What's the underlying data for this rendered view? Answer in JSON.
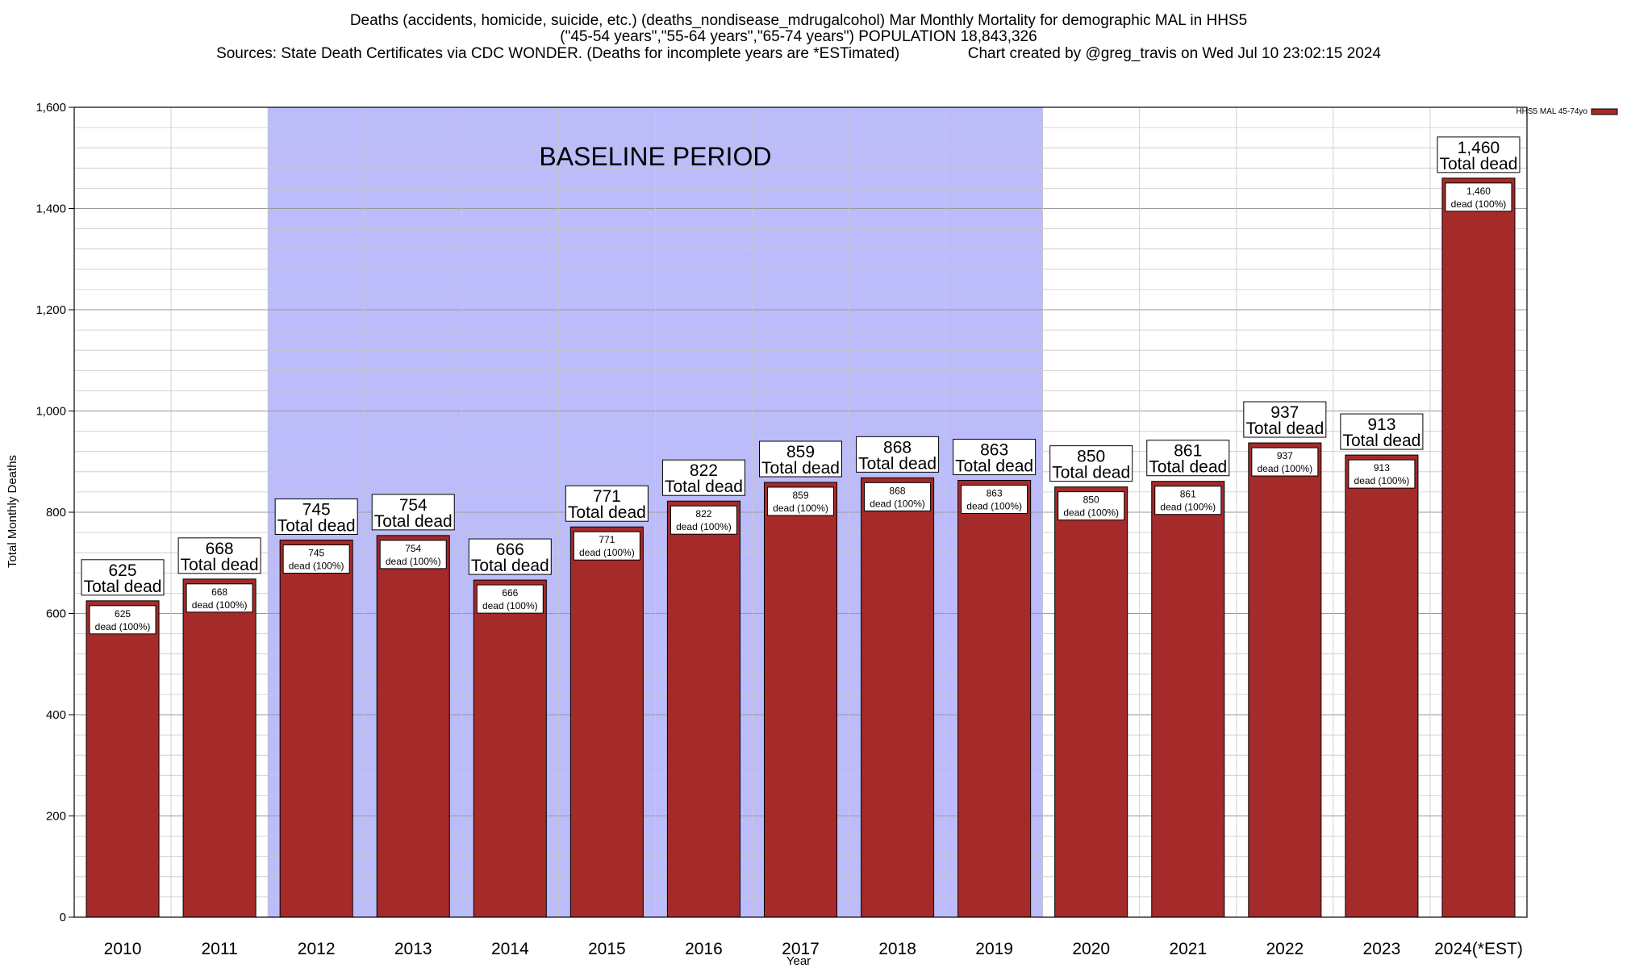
{
  "chart_data": {
    "type": "bar",
    "title_lines": [
      "Deaths (accidents, homicide, suicide, etc.) (deaths_nondisease_mdrugalcohol) Mar Monthly Mortality for demographic MAL in HHS5",
      "(\"45-54 years\",\"55-64 years\",\"65-74 years\") POPULATION 18,843,326",
      "Sources: State Death Certificates via CDC WONDER. (Deaths for incomplete years are *ESTimated)                Chart created by @greg_travis on Wed Jul 10 23:02:15 2024"
    ],
    "xlabel": "Year",
    "ylabel": "Total Monthly Deaths",
    "ylim": [
      0,
      1600
    ],
    "yticks": [
      0,
      200,
      400,
      600,
      800,
      1000,
      1200,
      1400,
      1600
    ],
    "ytick_labels": [
      "0",
      "200",
      "400",
      "600",
      "800",
      "1,000",
      "1,200",
      "1,400",
      "1,600"
    ],
    "grid": true,
    "categories": [
      "2010",
      "2011",
      "2012",
      "2013",
      "2014",
      "2015",
      "2016",
      "2017",
      "2018",
      "2019",
      "2020",
      "2021",
      "2022",
      "2023",
      "2024(*EST)"
    ],
    "series": [
      {
        "name": "HHS5 MAL 45-74yo",
        "color": "#a52a2a",
        "values": [
          625,
          668,
          745,
          754,
          666,
          771,
          822,
          859,
          868,
          863,
          850,
          861,
          937,
          913,
          1460
        ]
      }
    ],
    "value_labels": [
      "625",
      "668",
      "745",
      "754",
      "666",
      "771",
      "822",
      "859",
      "868",
      "863",
      "850",
      "861",
      "937",
      "913",
      "1,460"
    ],
    "total_label": "Total dead",
    "share_label": "dead (100%)",
    "baseline": {
      "label": "BASELINE PERIOD",
      "start": "2012",
      "end": "2019",
      "color": "#bcbcfa"
    },
    "legend": {
      "label": "HHS5 MAL 45-74yo",
      "placement": "top-right"
    }
  }
}
